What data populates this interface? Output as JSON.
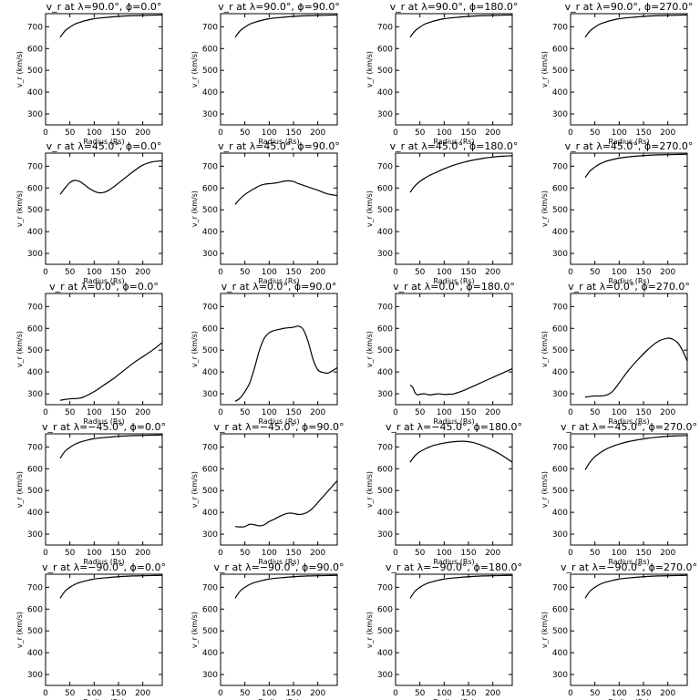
{
  "figure": {
    "chart_data": [
      {
        "type": "line",
        "title": "v_r at λ=90.0°, ϕ=0.0°",
        "xlabel": "Radius (Rs)",
        "ylabel": "v_r (km/s)",
        "xlim": [
          0,
          240
        ],
        "ylim": [
          250,
          760
        ],
        "x": [
          30,
          40,
          50,
          60,
          70,
          80,
          100,
          120,
          140,
          160,
          180,
          200,
          220,
          240
        ],
        "series": [
          {
            "values": [
              652,
              681,
              698,
              712,
              720,
              727,
              737,
              742,
              746,
              749,
              751,
              752,
              753,
              754
            ]
          }
        ]
      },
      {
        "type": "line",
        "title": "v_r at λ=90.0°, ϕ=90.0°",
        "xlabel": "Radius (Rs)",
        "ylabel": "v_r (km/s)",
        "xlim": [
          0,
          240
        ],
        "ylim": [
          250,
          760
        ],
        "x": [
          30,
          40,
          50,
          60,
          70,
          80,
          100,
          120,
          140,
          160,
          180,
          200,
          220,
          240
        ],
        "series": [
          {
            "values": [
              652,
              681,
              698,
              712,
              720,
              727,
              737,
              742,
              746,
              749,
              751,
              752,
              753,
              754
            ]
          }
        ]
      },
      {
        "type": "line",
        "title": "v_r at λ=90.0°, ϕ=180.0°",
        "xlabel": "Radius (Rs)",
        "ylabel": "v_r (km/s)",
        "xlim": [
          0,
          240
        ],
        "ylim": [
          250,
          760
        ],
        "x": [
          30,
          40,
          50,
          60,
          70,
          80,
          100,
          120,
          140,
          160,
          180,
          200,
          220,
          240
        ],
        "series": [
          {
            "values": [
              652,
              681,
              698,
              712,
              720,
              727,
              737,
              742,
              746,
              749,
              751,
              752,
              753,
              754
            ]
          }
        ]
      },
      {
        "type": "line",
        "title": "v_r at λ=90.0°, ϕ=270.0°",
        "xlabel": "Radius (Rs)",
        "ylabel": "v_r (km/s)",
        "xlim": [
          0,
          240
        ],
        "ylim": [
          250,
          760
        ],
        "x": [
          30,
          40,
          50,
          60,
          70,
          80,
          100,
          120,
          140,
          160,
          180,
          200,
          220,
          240
        ],
        "series": [
          {
            "values": [
              652,
              681,
              698,
              712,
              720,
              727,
              737,
              742,
              746,
              749,
              751,
              752,
              753,
              754
            ]
          }
        ]
      },
      {
        "type": "line",
        "title": "v_r at λ=45.0°, ϕ=0.0°",
        "xlabel": "Radius (Rs)",
        "ylabel": "v_r (km/s)",
        "xlim": [
          0,
          240
        ],
        "ylim": [
          250,
          760
        ],
        "x": [
          30,
          40,
          50,
          60,
          70,
          80,
          90,
          100,
          110,
          120,
          130,
          140,
          160,
          180,
          200,
          220,
          240
        ],
        "series": [
          {
            "values": [
              570,
              600,
              625,
              635,
              630,
              615,
              598,
              585,
              578,
              580,
              590,
              605,
              640,
              675,
              705,
              720,
              725
            ]
          }
        ]
      },
      {
        "type": "line",
        "title": "v_r at λ=45.0°, ϕ=90.0°",
        "xlabel": "Radius (Rs)",
        "ylabel": "v_r (km/s)",
        "xlim": [
          0,
          240
        ],
        "ylim": [
          250,
          760
        ],
        "x": [
          30,
          40,
          50,
          60,
          70,
          80,
          90,
          100,
          110,
          120,
          130,
          140,
          150,
          160,
          180,
          200,
          220,
          240
        ],
        "series": [
          {
            "values": [
              525,
              550,
              570,
              585,
              598,
              610,
              617,
              620,
              622,
              626,
              631,
              633,
              630,
              620,
              605,
              590,
              573,
              565
            ]
          }
        ]
      },
      {
        "type": "line",
        "title": "v_r at λ=45.0°, ϕ=180.0°",
        "xlabel": "Radius (Rs)",
        "ylabel": "v_r (km/s)",
        "xlim": [
          0,
          240
        ],
        "ylim": [
          250,
          760
        ],
        "x": [
          30,
          40,
          50,
          60,
          70,
          80,
          100,
          120,
          140,
          160,
          180,
          200,
          220,
          240
        ],
        "series": [
          {
            "values": [
              580,
              610,
              630,
              645,
              658,
              668,
              688,
              705,
              718,
              728,
              736,
              742,
              746,
              748
            ]
          }
        ]
      },
      {
        "type": "line",
        "title": "v_r at λ=45.0°, ϕ=270.0°",
        "xlabel": "Radius (Rs)",
        "ylabel": "v_r (km/s)",
        "xlim": [
          0,
          240
        ],
        "ylim": [
          250,
          760
        ],
        "x": [
          30,
          40,
          50,
          60,
          70,
          80,
          100,
          120,
          140,
          160,
          180,
          200,
          220,
          240
        ],
        "series": [
          {
            "values": [
              648,
              678,
              696,
              710,
              720,
              727,
              737,
              743,
              747,
              750,
              752,
              753,
              754,
              755
            ]
          }
        ]
      },
      {
        "type": "line",
        "title": "v_r at λ=0.0°, ϕ=0.0°",
        "xlabel": "Radius (Rs)",
        "ylabel": "v_r (km/s)",
        "xlim": [
          0,
          240
        ],
        "ylim": [
          250,
          760
        ],
        "x": [
          30,
          40,
          50,
          60,
          70,
          80,
          100,
          120,
          140,
          160,
          180,
          200,
          220,
          240
        ],
        "series": [
          {
            "values": [
              270,
              274,
              277,
              278,
              280,
              287,
              310,
              340,
              370,
              405,
              440,
              470,
              500,
              535
            ]
          }
        ]
      },
      {
        "type": "line",
        "title": "v_r at λ=0.0°, ϕ=90.0°",
        "xlabel": "Radius (Rs)",
        "ylabel": "v_r (km/s)",
        "xlim": [
          0,
          240
        ],
        "ylim": [
          250,
          760
        ],
        "x": [
          30,
          40,
          50,
          60,
          70,
          80,
          90,
          100,
          110,
          120,
          130,
          140,
          150,
          160,
          170,
          180,
          190,
          200,
          210,
          220,
          230,
          240
        ],
        "series": [
          {
            "values": [
              265,
              280,
              310,
              350,
              420,
              500,
              555,
              580,
              590,
              595,
              600,
              603,
              605,
              610,
              595,
              540,
              460,
              410,
              398,
              395,
              405,
              420
            ]
          }
        ]
      },
      {
        "type": "line",
        "title": "v_r at λ=0.0°, ϕ=180.0°",
        "xlabel": "Radius (Rs)",
        "ylabel": "v_r (km/s)",
        "xlim": [
          0,
          240
        ],
        "ylim": [
          250,
          760
        ],
        "x": [
          30,
          35,
          40,
          45,
          50,
          60,
          70,
          80,
          90,
          100,
          110,
          120,
          140,
          160,
          180,
          200,
          220,
          240
        ],
        "series": [
          {
            "values": [
              340,
              330,
              305,
              295,
              298,
              300,
              295,
              298,
              300,
              297,
              298,
              300,
              315,
              335,
              355,
              375,
              395,
              415
            ]
          }
        ]
      },
      {
        "type": "line",
        "title": "v_r at λ=0.0°, ϕ=270.0°",
        "xlabel": "Radius (Rs)",
        "ylabel": "v_r (km/s)",
        "xlim": [
          0,
          240
        ],
        "ylim": [
          250,
          760
        ],
        "x": [
          30,
          40,
          50,
          60,
          70,
          80,
          90,
          100,
          120,
          140,
          160,
          180,
          200,
          210,
          220,
          230,
          240
        ],
        "series": [
          {
            "values": [
              285,
              288,
              290,
              290,
              292,
              300,
              320,
              350,
              410,
              460,
              505,
              540,
              555,
              550,
              535,
              500,
              450
            ]
          }
        ]
      },
      {
        "type": "line",
        "title": "v_r at λ=−45.0°, ϕ=0.0°",
        "xlabel": "Radius (Rs)",
        "ylabel": "v_r (km/s)",
        "xlim": [
          0,
          240
        ],
        "ylim": [
          250,
          760
        ],
        "x": [
          30,
          40,
          50,
          60,
          70,
          80,
          100,
          120,
          140,
          160,
          180,
          200,
          220,
          240
        ],
        "series": [
          {
            "values": [
              648,
              680,
              698,
              712,
              721,
              728,
              738,
              743,
              747,
              750,
              752,
              753,
              754,
              755
            ]
          }
        ]
      },
      {
        "type": "line",
        "title": "v_r at λ=−45.0°, ϕ=90.0°",
        "xlabel": "Radius (Rs)",
        "ylabel": "v_r (km/s)",
        "xlim": [
          0,
          240
        ],
        "ylim": [
          250,
          760
        ],
        "x": [
          30,
          40,
          50,
          60,
          70,
          80,
          90,
          100,
          110,
          120,
          130,
          140,
          150,
          160,
          170,
          180,
          190,
          200,
          210,
          220,
          230,
          240
        ],
        "series": [
          {
            "values": [
              335,
              333,
              335,
              345,
              343,
              338,
              343,
              358,
              368,
              380,
              390,
              396,
              395,
              390,
              393,
              402,
              420,
              445,
              470,
              495,
              520,
              545
            ]
          }
        ]
      },
      {
        "type": "line",
        "title": "v_r at λ=−45.0°, ϕ=180.0°",
        "xlabel": "Radius (Rs)",
        "ylabel": "v_r (km/s)",
        "xlim": [
          0,
          240
        ],
        "ylim": [
          250,
          760
        ],
        "x": [
          30,
          40,
          50,
          60,
          70,
          80,
          100,
          120,
          140,
          160,
          180,
          200,
          220,
          240
        ],
        "series": [
          {
            "values": [
              630,
              660,
              678,
              690,
              700,
              708,
              718,
              724,
              726,
              720,
              705,
              685,
              660,
              630
            ]
          }
        ]
      },
      {
        "type": "line",
        "title": "v_r at λ=−45.0°, ϕ=270.0°",
        "xlabel": "Radius (Rs)",
        "ylabel": "v_r (km/s)",
        "xlim": [
          0,
          240
        ],
        "ylim": [
          250,
          760
        ],
        "x": [
          30,
          40,
          50,
          60,
          70,
          80,
          100,
          120,
          140,
          160,
          180,
          200,
          220,
          240
        ],
        "series": [
          {
            "values": [
              595,
              630,
              655,
              672,
              686,
              697,
              713,
              725,
              733,
              740,
              745,
              749,
              751,
              752
            ]
          }
        ]
      },
      {
        "type": "line",
        "title": "v_r at λ=−90.0°, ϕ=0.0°",
        "xlabel": "Radius (Rs)",
        "ylabel": "v_r (km/s)",
        "xlim": [
          0,
          240
        ],
        "ylim": [
          250,
          760
        ],
        "x": [
          30,
          40,
          50,
          60,
          70,
          80,
          100,
          120,
          140,
          160,
          180,
          200,
          220,
          240
        ],
        "series": [
          {
            "values": [
              650,
              682,
              700,
              713,
              722,
              728,
              738,
              743,
              747,
              750,
              752,
              753,
              754,
              755
            ]
          }
        ]
      },
      {
        "type": "line",
        "title": "v_r at λ=−90.0°, ϕ=90.0°",
        "xlabel": "Radius (Rs)",
        "ylabel": "v_r (km/s)",
        "xlim": [
          0,
          240
        ],
        "ylim": [
          250,
          760
        ],
        "x": [
          30,
          40,
          50,
          60,
          70,
          80,
          100,
          120,
          140,
          160,
          180,
          200,
          220,
          240
        ],
        "series": [
          {
            "values": [
              650,
              682,
              700,
              713,
              722,
              728,
              738,
              743,
              747,
              750,
              752,
              753,
              754,
              755
            ]
          }
        ]
      },
      {
        "type": "line",
        "title": "v_r at λ=−90.0°, ϕ=180.0°",
        "xlabel": "Radius (Rs)",
        "ylabel": "v_r (km/s)",
        "xlim": [
          0,
          240
        ],
        "ylim": [
          250,
          760
        ],
        "x": [
          30,
          40,
          50,
          60,
          70,
          80,
          100,
          120,
          140,
          160,
          180,
          200,
          220,
          240
        ],
        "series": [
          {
            "values": [
              650,
              682,
              700,
              713,
              722,
              728,
              738,
              743,
              747,
              750,
              752,
              753,
              754,
              755
            ]
          }
        ]
      },
      {
        "type": "line",
        "title": "v_r at λ=−90.0°, ϕ=270.0°",
        "xlabel": "Radius (Rs)",
        "ylabel": "v_r (km/s)",
        "xlim": [
          0,
          240
        ],
        "ylim": [
          250,
          760
        ],
        "x": [
          30,
          40,
          50,
          60,
          70,
          80,
          100,
          120,
          140,
          160,
          180,
          200,
          220,
          240
        ],
        "series": [
          {
            "values": [
              650,
              682,
              700,
              713,
              722,
              728,
              738,
              743,
              747,
              750,
              752,
              753,
              754,
              755
            ]
          }
        ]
      }
    ]
  },
  "axes": {
    "x_ticks": [
      0,
      50,
      100,
      150,
      200
    ],
    "y_ticks": [
      300,
      400,
      500,
      600,
      700
    ]
  }
}
